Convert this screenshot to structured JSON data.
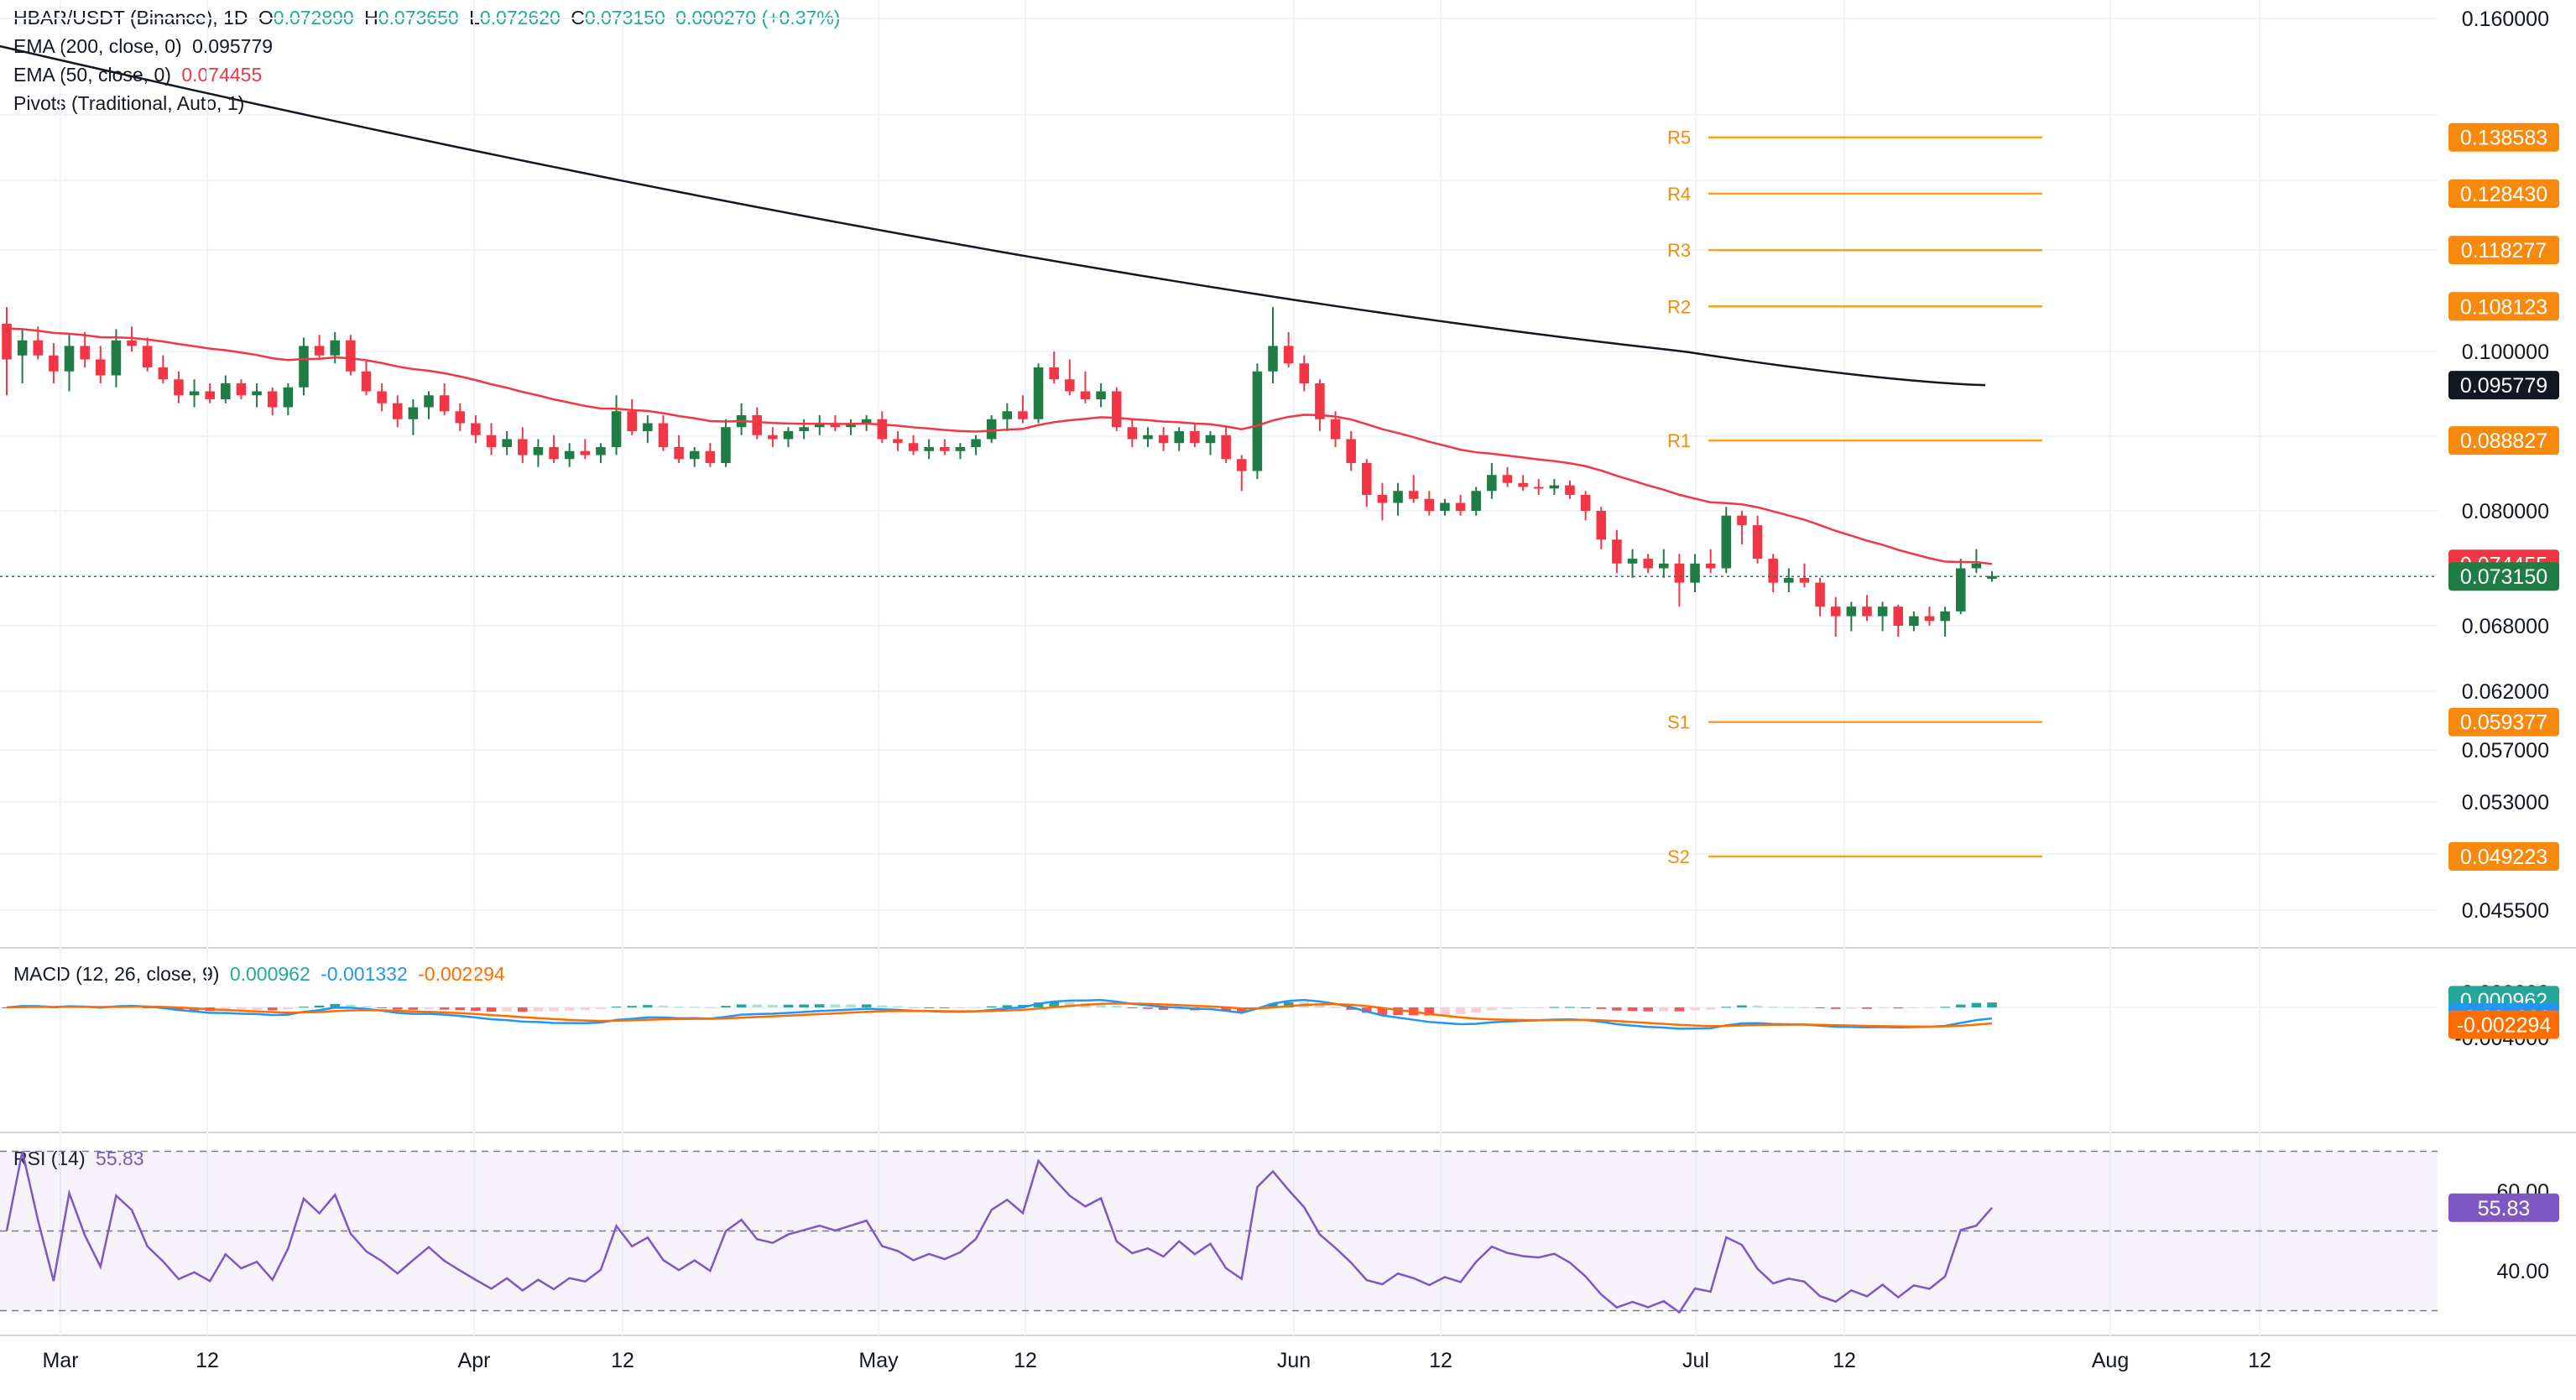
{
  "colors": {
    "up": "#26a69a",
    "upDark": "#1e7c44",
    "down": "#f23645",
    "ema200": "#131722",
    "ema50": "#f23645",
    "pivot": "#f7a21b",
    "macd": "#2196f3",
    "signal": "#ff6d00",
    "rsi": "#7e57c2",
    "grid": "#f0f3fa"
  },
  "legend": {
    "symbol": "HBAR/USDT (Binance), 1D",
    "o_label": "O",
    "o": "0.072890",
    "h_label": "H",
    "h": "0.073650",
    "l_label": "L",
    "l": "0.072620",
    "c_label": "C",
    "c": "0.073150",
    "change": "0.000270 (+0.37%)",
    "ema200_label": "EMA (200, close, 0)",
    "ema200_value": "0.095779",
    "ema50_label": "EMA (50, close, 0)",
    "ema50_value": "0.074455",
    "pivots_label": "Pivots (Traditional, Auto, 1)",
    "macd_label": "MACD (12, 26, close, 9)",
    "macd_hist": "0.000962",
    "macd_line": "-0.001332",
    "macd_signal": "-0.002294",
    "rsi_label": "RSI (14)",
    "rsi_value": "55.83"
  },
  "chart_data": [
    {
      "type": "candlestick",
      "name": "HBAR/USDT (Binance), 1D",
      "x_labels": [
        "Mar",
        "12",
        "Apr",
        "12",
        "May",
        "12",
        "Jun",
        "12",
        "Jul",
        "12",
        "Aug",
        "12"
      ],
      "y_ticks": [
        "0.160000",
        "0.100000",
        "0.080000",
        "0.068000",
        "0.062000",
        "0.057000",
        "0.053000",
        "0.045500"
      ],
      "price_ohlc_approx": [
        [
          0.105,
          0.108,
          0.0945,
          0.099
        ],
        [
          0.0995,
          0.104,
          0.096,
          0.102
        ],
        [
          0.102,
          0.1045,
          0.099,
          0.0995
        ],
        [
          0.0995,
          0.1015,
          0.096,
          0.0975
        ],
        [
          0.0975,
          0.103,
          0.095,
          0.101
        ],
        [
          0.101,
          0.1035,
          0.098,
          0.099
        ],
        [
          0.099,
          0.101,
          0.096,
          0.097
        ],
        [
          0.097,
          0.104,
          0.0955,
          0.102
        ],
        [
          0.102,
          0.1045,
          0.1,
          0.101
        ],
        [
          0.101,
          0.1025,
          0.0975,
          0.098
        ],
        [
          0.098,
          0.0995,
          0.096,
          0.0965
        ],
        [
          0.0965,
          0.0975,
          0.0935,
          0.0945
        ],
        [
          0.0945,
          0.0965,
          0.093,
          0.095
        ],
        [
          0.095,
          0.096,
          0.0935,
          0.094
        ],
        [
          0.094,
          0.097,
          0.0935,
          0.096
        ],
        [
          0.096,
          0.0965,
          0.094,
          0.0945
        ],
        [
          0.0945,
          0.096,
          0.093,
          0.095
        ],
        [
          0.095,
          0.0955,
          0.092,
          0.093
        ],
        [
          0.093,
          0.096,
          0.092,
          0.0955
        ],
        [
          0.0955,
          0.1025,
          0.0945,
          0.101
        ],
        [
          0.101,
          0.103,
          0.099,
          0.0995
        ],
        [
          0.0995,
          0.1035,
          0.0985,
          0.102
        ],
        [
          0.102,
          0.103,
          0.097,
          0.0975
        ],
        [
          0.0975,
          0.099,
          0.0945,
          0.095
        ],
        [
          0.095,
          0.096,
          0.0925,
          0.0935
        ],
        [
          0.0935,
          0.0945,
          0.0905,
          0.0915
        ],
        [
          0.0915,
          0.094,
          0.0895,
          0.093
        ],
        [
          0.093,
          0.095,
          0.0915,
          0.0945
        ],
        [
          0.0945,
          0.096,
          0.092,
          0.0925
        ],
        [
          0.0925,
          0.0935,
          0.09,
          0.091
        ],
        [
          0.091,
          0.092,
          0.0885,
          0.0895
        ],
        [
          0.0895,
          0.091,
          0.087,
          0.088
        ],
        [
          0.088,
          0.09,
          0.087,
          0.089
        ],
        [
          0.089,
          0.0905,
          0.086,
          0.087
        ],
        [
          0.087,
          0.089,
          0.0855,
          0.088
        ],
        [
          0.088,
          0.0895,
          0.086,
          0.0865
        ],
        [
          0.0865,
          0.0885,
          0.0855,
          0.0875
        ],
        [
          0.0875,
          0.089,
          0.0865,
          0.087
        ],
        [
          0.087,
          0.0885,
          0.086,
          0.088
        ],
        [
          0.088,
          0.0945,
          0.087,
          0.0925
        ],
        [
          0.0925,
          0.094,
          0.0895,
          0.09
        ],
        [
          0.09,
          0.092,
          0.0885,
          0.091
        ],
        [
          0.091,
          0.092,
          0.0875,
          0.088
        ],
        [
          0.088,
          0.0895,
          0.086,
          0.0865
        ],
        [
          0.0865,
          0.088,
          0.0855,
          0.0875
        ],
        [
          0.0875,
          0.0885,
          0.0855,
          0.086
        ],
        [
          0.086,
          0.0915,
          0.0855,
          0.0905
        ],
        [
          0.0905,
          0.0935,
          0.0895,
          0.092
        ],
        [
          0.092,
          0.093,
          0.089,
          0.0895
        ],
        [
          0.0895,
          0.0905,
          0.088,
          0.089
        ],
        [
          0.089,
          0.0905,
          0.088,
          0.09
        ],
        [
          0.09,
          0.0915,
          0.089,
          0.0905
        ],
        [
          0.0905,
          0.092,
          0.0895,
          0.091
        ],
        [
          0.091,
          0.092,
          0.09,
          0.0905
        ],
        [
          0.0905,
          0.0915,
          0.0895,
          0.091
        ],
        [
          0.091,
          0.092,
          0.09,
          0.0915
        ],
        [
          0.0915,
          0.0925,
          0.0885,
          0.089
        ],
        [
          0.089,
          0.09,
          0.0875,
          0.0885
        ],
        [
          0.0885,
          0.0895,
          0.087,
          0.0875
        ],
        [
          0.0875,
          0.089,
          0.0865,
          0.088
        ],
        [
          0.088,
          0.089,
          0.087,
          0.0875
        ],
        [
          0.0875,
          0.0885,
          0.0865,
          0.088
        ],
        [
          0.088,
          0.0895,
          0.087,
          0.089
        ],
        [
          0.089,
          0.092,
          0.0885,
          0.0915
        ],
        [
          0.0915,
          0.0935,
          0.09,
          0.0925
        ],
        [
          0.0925,
          0.0945,
          0.091,
          0.0915
        ],
        [
          0.0915,
          0.0985,
          0.091,
          0.098
        ],
        [
          0.098,
          0.1,
          0.096,
          0.0965
        ],
        [
          0.0965,
          0.099,
          0.0945,
          0.095
        ],
        [
          0.095,
          0.0975,
          0.0935,
          0.094
        ],
        [
          0.094,
          0.096,
          0.093,
          0.095
        ],
        [
          0.095,
          0.0955,
          0.09,
          0.0905
        ],
        [
          0.0905,
          0.0915,
          0.088,
          0.089
        ],
        [
          0.089,
          0.0905,
          0.088,
          0.0895
        ],
        [
          0.0895,
          0.0905,
          0.0875,
          0.0885
        ],
        [
          0.0885,
          0.0905,
          0.0875,
          0.09
        ],
        [
          0.09,
          0.091,
          0.088,
          0.0885
        ],
        [
          0.0885,
          0.09,
          0.087,
          0.0895
        ],
        [
          0.0895,
          0.0905,
          0.086,
          0.0865
        ],
        [
          0.0865,
          0.087,
          0.0825,
          0.085
        ],
        [
          0.085,
          0.0985,
          0.084,
          0.0975
        ],
        [
          0.0975,
          0.108,
          0.096,
          0.101
        ],
        [
          0.101,
          0.1035,
          0.098,
          0.0985
        ],
        [
          0.0985,
          0.0995,
          0.095,
          0.096
        ],
        [
          0.096,
          0.0965,
          0.09,
          0.0915
        ],
        [
          0.0915,
          0.0925,
          0.088,
          0.089
        ],
        [
          0.089,
          0.09,
          0.085,
          0.086
        ],
        [
          0.086,
          0.0865,
          0.0805,
          0.082
        ],
        [
          0.082,
          0.0835,
          0.079,
          0.081
        ],
        [
          0.081,
          0.0835,
          0.0795,
          0.0825
        ],
        [
          0.0825,
          0.0845,
          0.081,
          0.0815
        ],
        [
          0.0815,
          0.0825,
          0.0795,
          0.08
        ],
        [
          0.08,
          0.0815,
          0.0795,
          0.081
        ],
        [
          0.081,
          0.082,
          0.0795,
          0.08
        ],
        [
          0.08,
          0.083,
          0.0795,
          0.0825
        ],
        [
          0.0825,
          0.086,
          0.0815,
          0.0845
        ],
        [
          0.0845,
          0.0855,
          0.083,
          0.0835
        ],
        [
          0.0835,
          0.0845,
          0.0825,
          0.083
        ],
        [
          0.083,
          0.084,
          0.082,
          0.0828
        ],
        [
          0.0828,
          0.084,
          0.082,
          0.0832
        ],
        [
          0.0832,
          0.0838,
          0.0815,
          0.082
        ],
        [
          0.082,
          0.0825,
          0.079,
          0.08
        ],
        [
          0.08,
          0.0805,
          0.076,
          0.077
        ],
        [
          0.077,
          0.078,
          0.0735,
          0.0745
        ],
        [
          0.0745,
          0.076,
          0.073,
          0.075
        ],
        [
          0.075,
          0.0755,
          0.0735,
          0.074
        ],
        [
          0.074,
          0.076,
          0.073,
          0.0745
        ],
        [
          0.0745,
          0.0755,
          0.07,
          0.0725
        ],
        [
          0.0725,
          0.0755,
          0.0715,
          0.0745
        ],
        [
          0.0745,
          0.076,
          0.0735,
          0.074
        ],
        [
          0.074,
          0.0805,
          0.0735,
          0.0795
        ],
        [
          0.0795,
          0.08,
          0.0765,
          0.0785
        ],
        [
          0.0785,
          0.0795,
          0.0745,
          0.075
        ],
        [
          0.075,
          0.0755,
          0.0715,
          0.0725
        ],
        [
          0.0725,
          0.074,
          0.0715,
          0.073
        ],
        [
          0.073,
          0.0745,
          0.072,
          0.0725
        ],
        [
          0.0725,
          0.073,
          0.069,
          0.07
        ],
        [
          0.07,
          0.071,
          0.067,
          0.069
        ],
        [
          0.069,
          0.0705,
          0.0675,
          0.07
        ],
        [
          0.07,
          0.0712,
          0.0685,
          0.069
        ],
        [
          0.069,
          0.0705,
          0.0675,
          0.07
        ],
        [
          0.07,
          0.0702,
          0.067,
          0.068
        ],
        [
          0.068,
          0.0695,
          0.0675,
          0.069
        ],
        [
          0.069,
          0.07,
          0.068,
          0.0685
        ],
        [
          0.0685,
          0.07,
          0.067,
          0.0695
        ],
        [
          0.0695,
          0.075,
          0.0692,
          0.074
        ],
        [
          0.074,
          0.076,
          0.0735,
          0.0745
        ],
        [
          0.0729,
          0.0737,
          0.0726,
          0.0732
        ]
      ],
      "last_price": 0.07315,
      "ema200": {
        "label": "EMA (200, close, 0)",
        "value": 0.095779,
        "path_start": 0.155,
        "path_mid": 0.12,
        "path_end": 0.095779
      },
      "ema50": {
        "label": "EMA (50, close, 0)",
        "value": 0.074455
      },
      "pivots": [
        {
          "name": "R5",
          "value": "0.138583"
        },
        {
          "name": "R4",
          "value": "0.128430"
        },
        {
          "name": "R3",
          "value": "0.118277"
        },
        {
          "name": "R2",
          "value": "0.108123"
        },
        {
          "name": "R1",
          "value": "0.088827"
        },
        {
          "name": "S1",
          "value": "0.059377"
        },
        {
          "name": "S2",
          "value": "0.049223"
        }
      ],
      "badges": [
        {
          "text": "0.138583",
          "color": "#f7890c"
        },
        {
          "text": "0.128430",
          "color": "#f7890c"
        },
        {
          "text": "0.118277",
          "color": "#f7890c"
        },
        {
          "text": "0.108123",
          "color": "#f7890c"
        },
        {
          "text": "0.095779",
          "color": "#131722"
        },
        {
          "text": "0.088827",
          "color": "#f7890c"
        },
        {
          "text": "0.074455",
          "color": "#f23645"
        },
        {
          "text": "0.073150",
          "color": "#1e7c44"
        },
        {
          "text": "0.059377",
          "color": "#f7890c"
        },
        {
          "text": "0.049223",
          "color": "#f7890c"
        }
      ]
    },
    {
      "type": "macd",
      "name": "MACD (12, 26, close, 9)",
      "y_ticks": [
        "0.002000",
        "0.000000",
        "-0.004000"
      ],
      "values": {
        "histogram": 0.000962,
        "macd": -0.001332,
        "signal": -0.002294
      },
      "badges": [
        {
          "text": "0.000962",
          "color": "#26a69a"
        },
        {
          "text": "-0.001332",
          "color": "#2196f3"
        },
        {
          "text": "-0.002294",
          "color": "#ff6d00"
        }
      ]
    },
    {
      "type": "rsi",
      "name": "RSI (14)",
      "y_ticks": [
        "60.00",
        "40.00"
      ],
      "value": 55.83,
      "badge": {
        "text": "55.83",
        "color": "#7e57c2"
      }
    }
  ]
}
